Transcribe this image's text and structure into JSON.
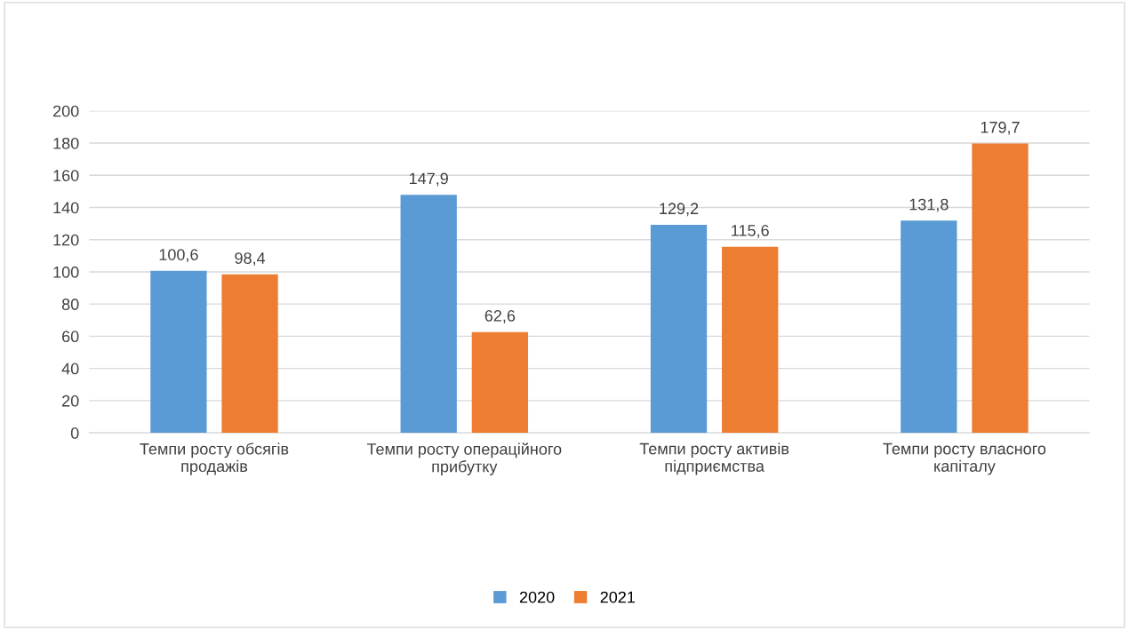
{
  "chart_data": {
    "type": "bar",
    "categories": [
      "Темпи росту обсягів\nпродажів",
      "Темпи росту операційного\nприбутку",
      "Темпи росту активів\nпідприємства",
      "Темпи росту власного\nкапіталу"
    ],
    "series": [
      {
        "name": "2020",
        "color": "#5b9bd5",
        "values": [
          100.6,
          147.9,
          129.2,
          131.8
        ],
        "value_labels": [
          "100,6",
          "147,9",
          "129,2",
          "131,8"
        ]
      },
      {
        "name": "2021",
        "color": "#ed7d31",
        "values": [
          98.4,
          62.6,
          115.6,
          179.7
        ],
        "value_labels": [
          "98,4",
          "62,6",
          "115,6",
          "179,7"
        ]
      }
    ],
    "ylim": [
      0,
      200
    ],
    "yticks": [
      0,
      20,
      40,
      60,
      80,
      100,
      120,
      140,
      160,
      180,
      200
    ],
    "grid": "y",
    "legend": "bottom"
  }
}
